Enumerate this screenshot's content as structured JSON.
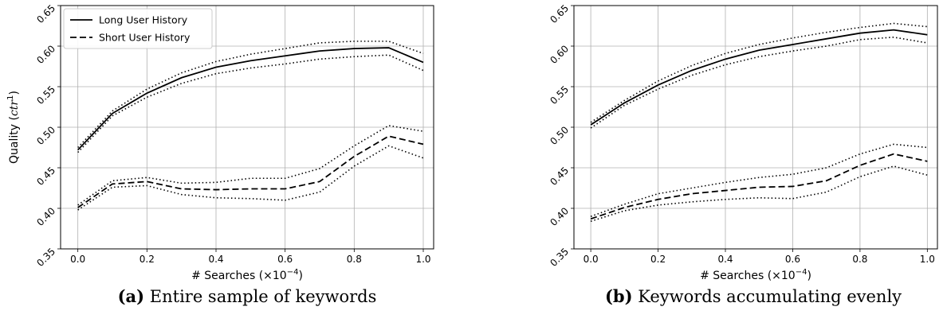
{
  "chart_data": [
    {
      "type": "line",
      "caption_label": "(a)",
      "caption_text": "Entire sample of keywords",
      "xlabel": "# Searches (×10",
      "xlabel_exp": "−4",
      "xlabel_close": ")",
      "ylabel": "Quality (",
      "ylabel_var": "ctr",
      "ylabel_exp": "1",
      "ylabel_close": ")",
      "xlim": [
        -0.05,
        1.03
      ],
      "ylim": [
        0.35,
        0.65
      ],
      "xticks": [
        "0.0",
        "0.2",
        "0.4",
        "0.6",
        "0.8",
        "1.0"
      ],
      "yticks": [
        "0.35",
        "0.40",
        "0.45",
        "0.50",
        "0.55",
        "0.60",
        "0.65"
      ],
      "grid": true,
      "legend": "top-left",
      "x": [
        0.0,
        0.1,
        0.2,
        0.3,
        0.4,
        0.5,
        0.6,
        0.7,
        0.8,
        0.9,
        1.0
      ],
      "series": [
        {
          "name": "Long User History",
          "style": "solid",
          "values": [
            0.472,
            0.517,
            0.542,
            0.561,
            0.574,
            0.582,
            0.588,
            0.594,
            0.597,
            0.598,
            0.58
          ],
          "upper": [
            0.475,
            0.52,
            0.547,
            0.567,
            0.581,
            0.59,
            0.597,
            0.604,
            0.606,
            0.606,
            0.591
          ],
          "lower": [
            0.469,
            0.514,
            0.537,
            0.554,
            0.566,
            0.573,
            0.578,
            0.584,
            0.587,
            0.589,
            0.57
          ]
        },
        {
          "name": "Short User History",
          "style": "dashed",
          "values": [
            0.401,
            0.43,
            0.433,
            0.424,
            0.423,
            0.424,
            0.424,
            0.433,
            0.464,
            0.489,
            0.479
          ],
          "upper": [
            0.404,
            0.434,
            0.438,
            0.431,
            0.432,
            0.437,
            0.437,
            0.449,
            0.477,
            0.502,
            0.495
          ],
          "lower": [
            0.398,
            0.426,
            0.428,
            0.417,
            0.413,
            0.412,
            0.41,
            0.42,
            0.452,
            0.477,
            0.462
          ]
        }
      ]
    },
    {
      "type": "line",
      "caption_label": "(b)",
      "caption_text": "Keywords accumulating evenly",
      "xlabel": "# Searches (×10",
      "xlabel_exp": "−4",
      "xlabel_close": ")",
      "xlim": [
        -0.05,
        1.03
      ],
      "ylim": [
        0.35,
        0.65
      ],
      "xticks": [
        "0.0",
        "0.2",
        "0.4",
        "0.6",
        "0.8",
        "1.0"
      ],
      "yticks": [
        "0.35",
        "0.40",
        "0.45",
        "0.50",
        "0.55",
        "0.60",
        "0.65"
      ],
      "grid": true,
      "x": [
        0.0,
        0.1,
        0.2,
        0.3,
        0.4,
        0.5,
        0.6,
        0.7,
        0.8,
        0.9,
        1.0
      ],
      "series": [
        {
          "style": "solid",
          "values": [
            0.503,
            0.53,
            0.552,
            0.57,
            0.584,
            0.595,
            0.602,
            0.609,
            0.616,
            0.62,
            0.614
          ],
          "upper": [
            0.506,
            0.533,
            0.557,
            0.576,
            0.591,
            0.602,
            0.61,
            0.617,
            0.623,
            0.628,
            0.624
          ],
          "lower": [
            0.499,
            0.527,
            0.547,
            0.564,
            0.577,
            0.587,
            0.594,
            0.6,
            0.608,
            0.611,
            0.604
          ]
        },
        {
          "style": "dashed",
          "values": [
            0.387,
            0.401,
            0.411,
            0.418,
            0.422,
            0.426,
            0.427,
            0.434,
            0.453,
            0.467,
            0.458
          ],
          "upper": [
            0.39,
            0.405,
            0.418,
            0.425,
            0.432,
            0.438,
            0.442,
            0.45,
            0.467,
            0.479,
            0.475
          ],
          "lower": [
            0.384,
            0.397,
            0.404,
            0.408,
            0.411,
            0.413,
            0.412,
            0.42,
            0.439,
            0.452,
            0.441
          ]
        }
      ]
    }
  ]
}
